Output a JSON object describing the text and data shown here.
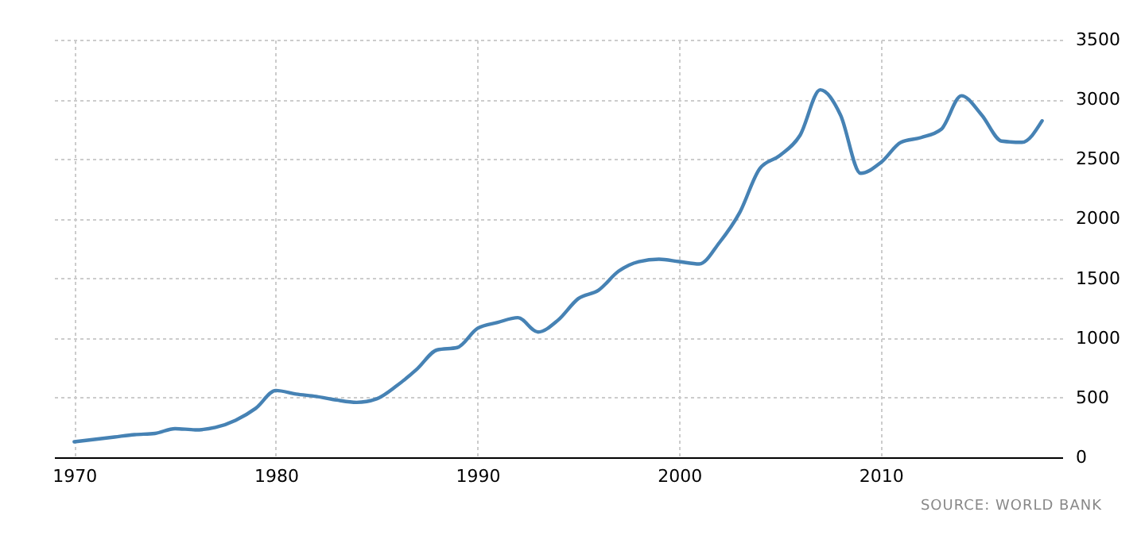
{
  "chart_data": {
    "type": "line",
    "x": [
      1970,
      1971,
      1972,
      1973,
      1974,
      1975,
      1976,
      1977,
      1978,
      1979,
      1980,
      1981,
      1982,
      1983,
      1984,
      1985,
      1986,
      1987,
      1988,
      1989,
      1990,
      1991,
      1992,
      1993,
      1994,
      1995,
      1996,
      1997,
      1998,
      1999,
      2000,
      2001,
      2002,
      2003,
      2004,
      2005,
      2006,
      2007,
      2008,
      2009,
      2010,
      2011,
      2012,
      2013,
      2014,
      2015,
      2016,
      2017,
      2018
    ],
    "series": [
      {
        "color": "#4682b4",
        "values": [
          130,
          150,
          170,
          190,
          200,
          240,
          230,
          250,
          310,
          410,
          560,
          530,
          510,
          480,
          460,
          490,
          600,
          740,
          900,
          920,
          1080,
          1130,
          1170,
          1050,
          1150,
          1330,
          1400,
          1560,
          1640,
          1660,
          1640,
          1620,
          1800,
          2050,
          2420,
          2530,
          2700,
          3080,
          2870,
          2380,
          2470,
          2640,
          2680,
          2750,
          3030,
          2870,
          2650,
          2640,
          2820
        ]
      }
    ],
    "xlim": [
      1969,
      2019
    ],
    "xticks": [
      1970,
      1980,
      1990,
      2000,
      2010
    ],
    "ylim": [
      0,
      3500
    ],
    "yticks": [
      0,
      500,
      1000,
      1500,
      2000,
      2500,
      3000,
      3500
    ],
    "grid": true,
    "line_style": "solid",
    "marker": "none",
    "annotations": [
      "SOURCE: WORLD BANK"
    ]
  }
}
